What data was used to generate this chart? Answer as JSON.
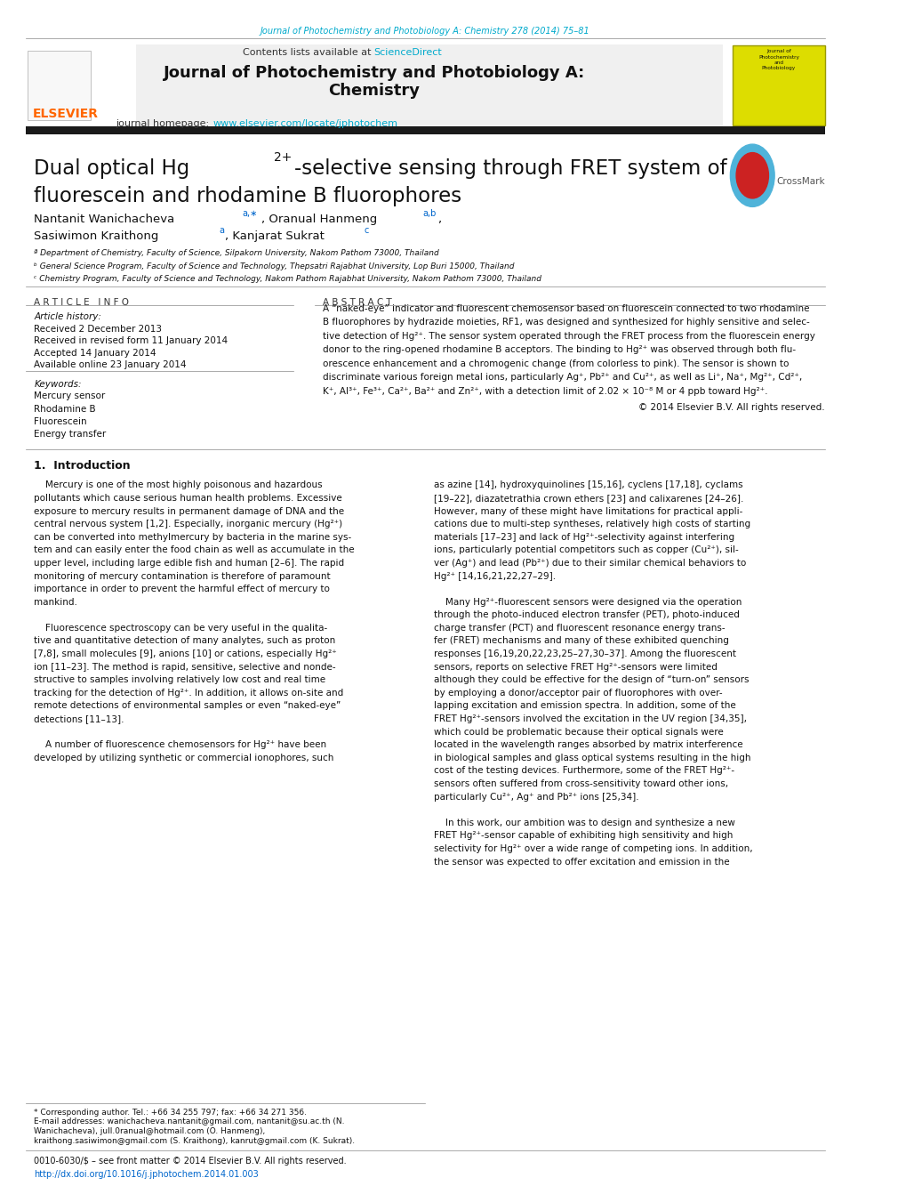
{
  "page_width": 10.2,
  "page_height": 13.51,
  "background_color": "#ffffff",
  "top_journal_line": "Journal of Photochemistry and Photobiology A: Chemistry 278 (2014) 75–81",
  "top_journal_color": "#00aacc",
  "header_bg": "#f0f0f0",
  "header_title_line1": "Journal of Photochemistry and Photobiology A:",
  "header_title_line2": "Chemistry",
  "contents_text": "Contents lists available at ",
  "sciencedirect_text": "ScienceDirect",
  "sciencedirect_color": "#00aacc",
  "journal_homepage_text": "journal homepage: ",
  "journal_homepage_url": "www.elsevier.com/locate/jphotochem",
  "journal_homepage_url_color": "#00aacc",
  "black_bar_color": "#1a1a1a",
  "elsevier_color": "#FF6600",
  "section_article_info": "A R T I C L E   I N F O",
  "section_abstract": "A B S T R A C T",
  "article_history_label": "Article history:",
  "received1": "Received 2 December 2013",
  "received2": "Received in revised form 11 January 2014",
  "accepted": "Accepted 14 January 2014",
  "available": "Available online 23 January 2014",
  "keywords_label": "Keywords:",
  "keywords": [
    "Mercury sensor",
    "Rhodamine B",
    "Fluorescein",
    "Energy transfer"
  ],
  "affil_a": "ª Department of Chemistry, Faculty of Science, Silpakorn University, Nakom Pathom 73000, Thailand",
  "affil_b": "ᵇ General Science Program, Faculty of Science and Technology, Thepsatri Rajabhat University, Lop Buri 15000, Thailand",
  "affil_c": "ᶜ Chemistry Program, Faculty of Science and Technology, Nakom Pathom Rajabhat University, Nakom Pathom 73000, Thailand",
  "copyright": "© 2014 Elsevier B.V. All rights reserved.",
  "intro_heading": "1.  Introduction",
  "footnote_line1": "* Corresponding author. Tel.: +66 34 255 797; fax: +66 34 271 356.",
  "footnote_line2": "E-mail addresses: wanichacheva.nantanit@gmail.com, nantanit@su.ac.th (N.",
  "footnote_line3": "Wanichacheva), jull.0ranual@hotmail.com (O. Hanmeng),",
  "footnote_line4": "kraithong.sasiwimon@gmail.com (S. Kraithong), kanrut@gmail.com (K. Sukrat).",
  "footer_line1": "0010-6030/$ – see front matter © 2014 Elsevier B.V. All rights reserved.",
  "footer_line2": "http://dx.doi.org/10.1016/j.jphotochem.2014.01.003",
  "footer_color": "#0066cc"
}
